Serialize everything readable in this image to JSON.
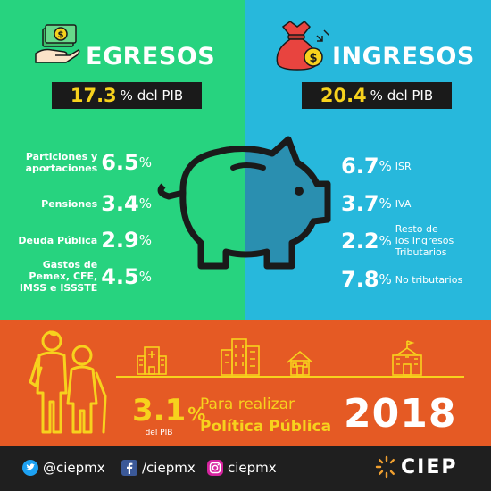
{
  "egresos": {
    "title": "EGRESOS",
    "pib_value": "17.3",
    "pib_unit": "% del PIB",
    "items": [
      {
        "label_lines": [
          "Particiones y",
          "aportaciones"
        ],
        "value": "6.5",
        "unit": "%"
      },
      {
        "label_lines": [
          "Pensiones"
        ],
        "value": "3.4",
        "unit": "%"
      },
      {
        "label_lines": [
          "Deuda Pública"
        ],
        "value": "2.9",
        "unit": "%"
      },
      {
        "label_lines": [
          "Gastos de",
          "Pemex, CFE,",
          "IMSS e ISSSTE"
        ],
        "value": "4.5",
        "unit": "%"
      }
    ]
  },
  "ingresos": {
    "title": "INGRESOS",
    "pib_value": "20.4",
    "pib_unit": "% del PIB",
    "items": [
      {
        "value": "6.7",
        "unit": "%",
        "label_lines": [
          "ISR"
        ]
      },
      {
        "value": "3.7",
        "unit": "%",
        "label_lines": [
          "IVA"
        ]
      },
      {
        "value": "2.2",
        "unit": "%",
        "label_lines": [
          "Resto de",
          "los Ingresos",
          "Tributarios"
        ]
      },
      {
        "value": "7.8",
        "unit": "%",
        "label_lines": [
          "No tributarios"
        ]
      }
    ]
  },
  "bottom": {
    "value": "3.1",
    "unit": "%",
    "value_sub": "del PIB",
    "line1": "Para realizar",
    "line2": "Política Pública",
    "year": "2018"
  },
  "footer": {
    "twitter": "@ciepmx",
    "facebook": "/ciepmx",
    "instagram": "ciepmx",
    "logo_text": "CIEP"
  },
  "icons": [
    "money-hand-icon",
    "money-bag-icon",
    "piggy-bank-icon",
    "elderly-couple-icon",
    "hospital-icon",
    "buildings-icon",
    "house-icon",
    "school-icon",
    "twitter-icon",
    "facebook-icon",
    "instagram-icon",
    "ciep-logo-icon"
  ],
  "colors": {
    "green": "#27d37f",
    "blue": "#27b8dc",
    "orange": "#e55a24",
    "yellow": "#f7d21d",
    "dark": "#1f1f1f"
  }
}
